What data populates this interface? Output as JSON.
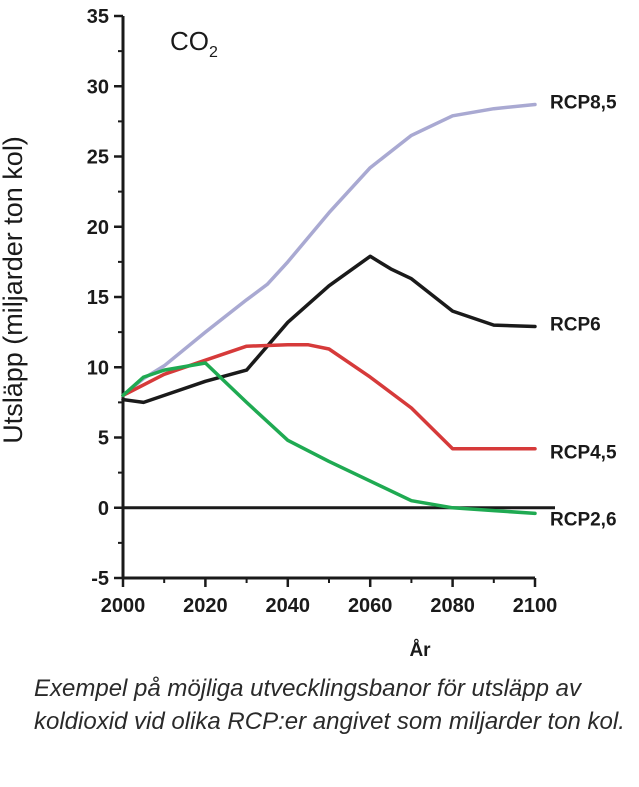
{
  "chart_data": {
    "type": "line",
    "annotation": "CO2",
    "annotation_main": "CO",
    "annotation_sub": "2",
    "xlabel": "År",
    "ylabel": "Utsläpp (miljarder ton kol)",
    "xlim": [
      2000,
      2100
    ],
    "ylim": [
      -5,
      35
    ],
    "x_ticks": [
      "2000",
      "2020",
      "2040",
      "2060",
      "2080",
      "2100"
    ],
    "y_ticks": [
      "-5",
      "0",
      "5",
      "10",
      "15",
      "20",
      "25",
      "30",
      "35"
    ],
    "grid": false,
    "legend": "inline labels at right end of each line",
    "series": [
      {
        "name": "RCP8,5",
        "color": "#a9a9d2",
        "x": [
          2000,
          2005,
          2010,
          2020,
          2030,
          2035,
          2040,
          2050,
          2060,
          2070,
          2080,
          2090,
          2100
        ],
        "y": [
          8.0,
          9.2,
          10.1,
          12.5,
          14.8,
          15.9,
          17.5,
          21.0,
          24.2,
          26.5,
          27.9,
          28.4,
          28.7
        ]
      },
      {
        "name": "RCP6",
        "color": "#1a1a1a",
        "x": [
          2000,
          2005,
          2010,
          2020,
          2030,
          2040,
          2050,
          2060,
          2065,
          2070,
          2080,
          2090,
          2100
        ],
        "y": [
          7.7,
          7.5,
          8.0,
          9.0,
          9.8,
          13.2,
          15.8,
          17.9,
          17.0,
          16.3,
          14.0,
          13.0,
          12.9
        ]
      },
      {
        "name": "RCP4,5",
        "color": "#d63a3a",
        "x": [
          2000,
          2010,
          2020,
          2030,
          2040,
          2045,
          2050,
          2060,
          2070,
          2080,
          2090,
          2100
        ],
        "y": [
          8.0,
          9.5,
          10.5,
          11.5,
          11.6,
          11.6,
          11.3,
          9.3,
          7.1,
          4.2,
          4.2,
          4.2
        ]
      },
      {
        "name": "RCP2,6",
        "color": "#1faa52",
        "x": [
          2000,
          2005,
          2010,
          2020,
          2030,
          2040,
          2050,
          2060,
          2070,
          2080,
          2090,
          2100
        ],
        "y": [
          8.0,
          9.3,
          9.8,
          10.3,
          7.5,
          4.8,
          3.3,
          1.9,
          0.5,
          0.0,
          -0.2,
          -0.4
        ]
      }
    ]
  },
  "caption": "Exempel på möjliga utvecklingsbanor för utsläpp av koldioxid vid olika RCP:er angivet som miljarder ton kol."
}
